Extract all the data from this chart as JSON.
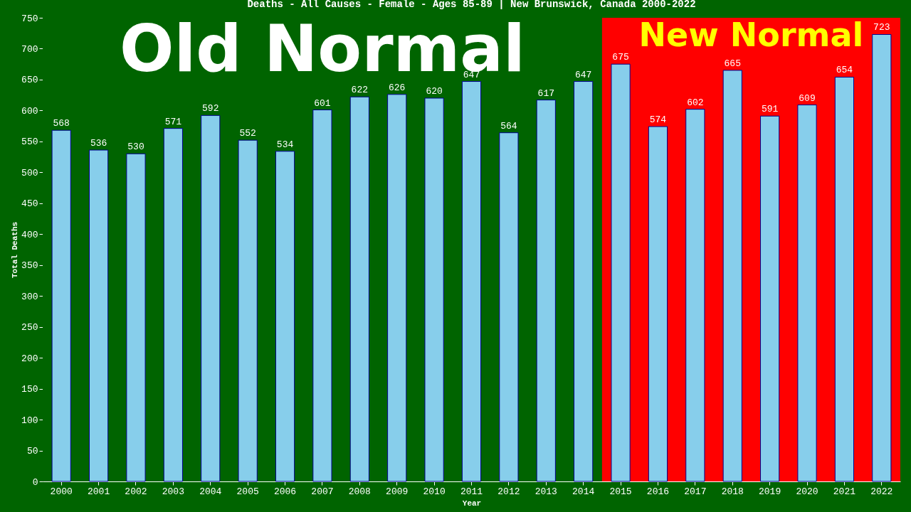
{
  "chart_data": {
    "type": "bar",
    "title": "Deaths - All Causes - Female - Ages 85-89 | New Brunswick, Canada 2000-2022",
    "xlabel": "Year",
    "ylabel": "Total Deaths",
    "categories": [
      "2000",
      "2001",
      "2002",
      "2003",
      "2004",
      "2005",
      "2006",
      "2007",
      "2008",
      "2009",
      "2010",
      "2011",
      "2012",
      "2013",
      "2014",
      "2015",
      "2016",
      "2017",
      "2018",
      "2019",
      "2020",
      "2021",
      "2022"
    ],
    "values": [
      568,
      536,
      530,
      571,
      592,
      552,
      534,
      601,
      622,
      626,
      620,
      647,
      564,
      617,
      647,
      675,
      574,
      602,
      665,
      591,
      609,
      654,
      723
    ],
    "color": "#87ceeb",
    "data_labels": true,
    "ylim": [
      0,
      750
    ],
    "yticks": [
      0,
      50,
      100,
      150,
      200,
      250,
      300,
      350,
      400,
      450,
      500,
      550,
      600,
      650,
      700,
      750
    ],
    "grid": false,
    "bands": [
      {
        "axis": "x",
        "from": "2000",
        "to": "2014",
        "label": "Old Normal",
        "color": "#006400"
      },
      {
        "axis": "x",
        "from": "2015",
        "to": "2022",
        "label": "New Normal",
        "color": "#ff0000"
      }
    ]
  }
}
